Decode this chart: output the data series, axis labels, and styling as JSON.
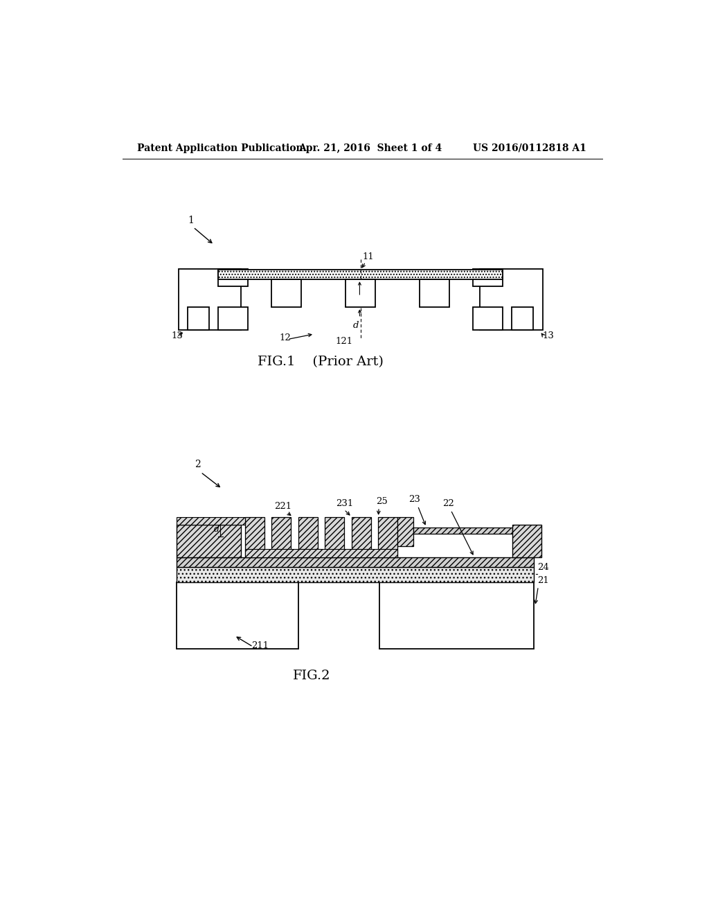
{
  "bg_color": "#ffffff",
  "header_text1": "Patent Application Publication",
  "header_text2": "Apr. 21, 2016  Sheet 1 of 4",
  "header_text3": "US 2016/0112818 A1",
  "fig1_label": "FIG.1    (Prior Art)",
  "fig2_label": "FIG.2",
  "fig1_ref1": "1",
  "fig1_ref11": "11",
  "fig1_ref12": "12",
  "fig1_ref121": "121",
  "fig1_ref13_left": "13",
  "fig1_ref13_right": "13",
  "fig1_ref_d": "d",
  "fig2_ref2": "2",
  "fig2_ref21": "21",
  "fig2_ref211": "211",
  "fig2_ref22": "22",
  "fig2_ref221": "221",
  "fig2_ref23": "23",
  "fig2_ref231": "231",
  "fig2_ref24": "24",
  "fig2_ref25": "25",
  "fig2_ref_d": "d"
}
